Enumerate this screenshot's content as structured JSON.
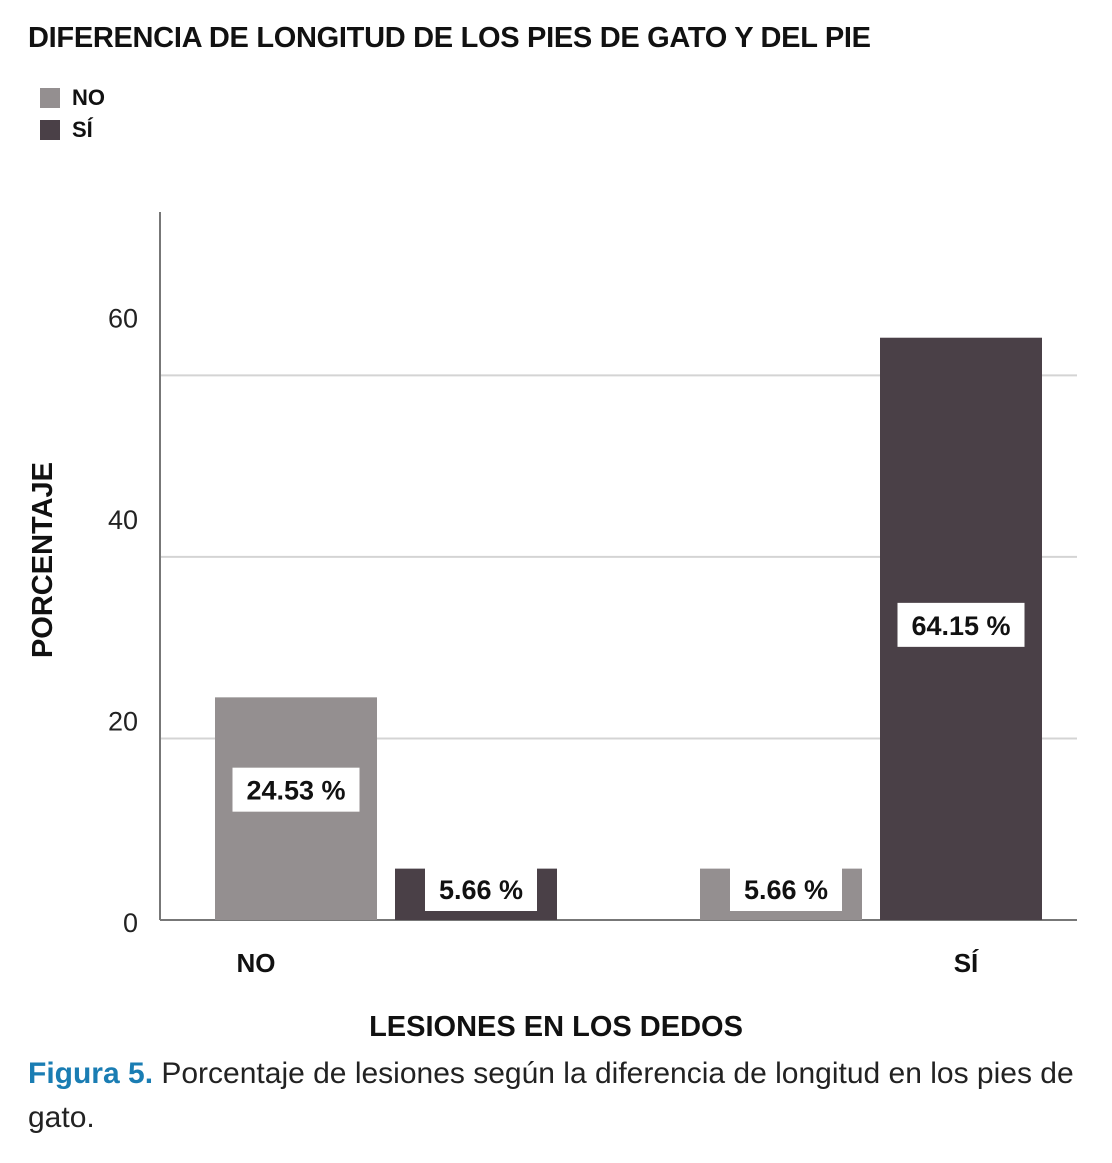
{
  "chart_data": {
    "type": "bar",
    "title": "DIFERENCIA DE LONGITUD DE LOS PIES DE GATO Y DEL PIE",
    "xlabel": "LESIONES EN LOS DEDOS",
    "ylabel": "PORCENTAJE",
    "categories": [
      "NO",
      "SÍ"
    ],
    "series": [
      {
        "name": "NO",
        "color": "#948f90",
        "values": [
          24.53,
          5.66
        ],
        "labels": [
          "24.53 %",
          "5.66 %"
        ]
      },
      {
        "name": "SÍ",
        "color": "#4a4047",
        "values": [
          5.66,
          64.15
        ],
        "labels": [
          "5.66 %",
          "64.15 %"
        ]
      }
    ],
    "yticks": [
      0,
      20,
      40,
      60
    ],
    "ylim": [
      0,
      78
    ],
    "grid": true,
    "legend_position": "top-left"
  },
  "caption": {
    "label": "Figura 5.",
    "text": " Porcentaje de lesiones según la diferencia de longitud en los pies de gato."
  }
}
